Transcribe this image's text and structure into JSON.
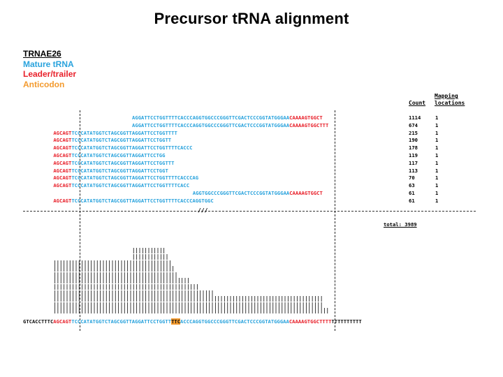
{
  "title": "Precursor tRNA alignment",
  "legend": {
    "gene": "TRNAE26",
    "mature": "Mature tRNA",
    "leader": "Leader/trailer",
    "anticodon": "Anticodon"
  },
  "colors": {
    "mature": "#2aa3dd",
    "leader": "#e8202a",
    "anticodon": "#f39a2e"
  },
  "headers": {
    "count": "Count",
    "mapping": "Mapping\nlocations"
  },
  "reads": [
    {
      "leader": "",
      "mature": "AGGATTCCTGGTTTTCACCCAGGTGGCCCGGGTTCGACTCCCGGTATGGGAA",
      "trailer": "CAAAAGTGGCT",
      "count": "1114",
      "map": "1"
    },
    {
      "leader": "",
      "mature": "AGGATTCCTGGTTTTCACCCAGGTGGCCCGGGTTCGACTCCCGGTATGGGAA",
      "trailer": "CAAAAGTGGCTTT",
      "count": "674",
      "map": "1"
    },
    {
      "leader": "AGCAGT",
      "mature": "TCCCATATGGTCTAGCGGTTAGGATTCCTGGTTTT",
      "trailer": "",
      "count": "215",
      "map": "1"
    },
    {
      "leader": "AGCAGT",
      "mature": "TCCCATATGGTCTAGCGGTTAGGATTCCTGGTT",
      "trailer": "",
      "count": "190",
      "map": "1"
    },
    {
      "leader": "AGCAGT",
      "mature": "TCCCATATGGTCTAGCGGTTAGGATTCCTGGTTTTCACCC",
      "trailer": "",
      "count": "178",
      "map": "1"
    },
    {
      "leader": "AGCAGT",
      "mature": "TCCCATATGGTCTAGCGGTTAGGATTCCTGG",
      "trailer": "",
      "count": "119",
      "map": "1"
    },
    {
      "leader": "AGCAGT",
      "mature": "TCCCATATGGTCTAGCGGTTAGGATTCCTGGTTT",
      "trailer": "",
      "count": "117",
      "map": "1"
    },
    {
      "leader": "AGCAGT",
      "mature": "TCCCATATGGTCTAGCGGTTAGGATTCCTGGT",
      "trailer": "",
      "count": "113",
      "map": "1"
    },
    {
      "leader": "AGCAGT",
      "mature": "TCCCATATGGTCTAGCGGTTAGGATTCCTGGTTTTCACCCAG",
      "trailer": "",
      "count": "70",
      "map": "1"
    },
    {
      "leader": "AGCAGT",
      "mature": "TCCCATATGGTCTAGCGGTTAGGATTCCTGGTTTTCACC",
      "trailer": "",
      "count": "63",
      "map": "1"
    },
    {
      "leader": "",
      "mature": "AGGTGGCCCGGGTTCGACTCCCGGTATGGGAA",
      "trailer": "CAAAAGTGGCT",
      "count": "61",
      "map": "1"
    },
    {
      "leader": "AGCAGT",
      "mature": "TCCCATATGGTCTAGCGGTTAGGATTCCTGGTTTTCACCCAGGTGGC",
      "trailer": "",
      "count": "61",
      "map": "1"
    }
  ],
  "total": "total: 3989",
  "break_mark": "///",
  "reference": {
    "flank5": "GTCACCTTTC",
    "leader": "AGCAGT",
    "mature_a": "TCCCATATGGTCTAGCGGTTAGGATTCCTGGTT",
    "anticodon": "TTC",
    "mature_b": "ACCCAGGTGGCCCGGGTTCGACTCCCGGTATGGGAA",
    "trailer": "CAAAAGTGGCTTTT",
    "flank3": "TTTTTTTTTT"
  }
}
